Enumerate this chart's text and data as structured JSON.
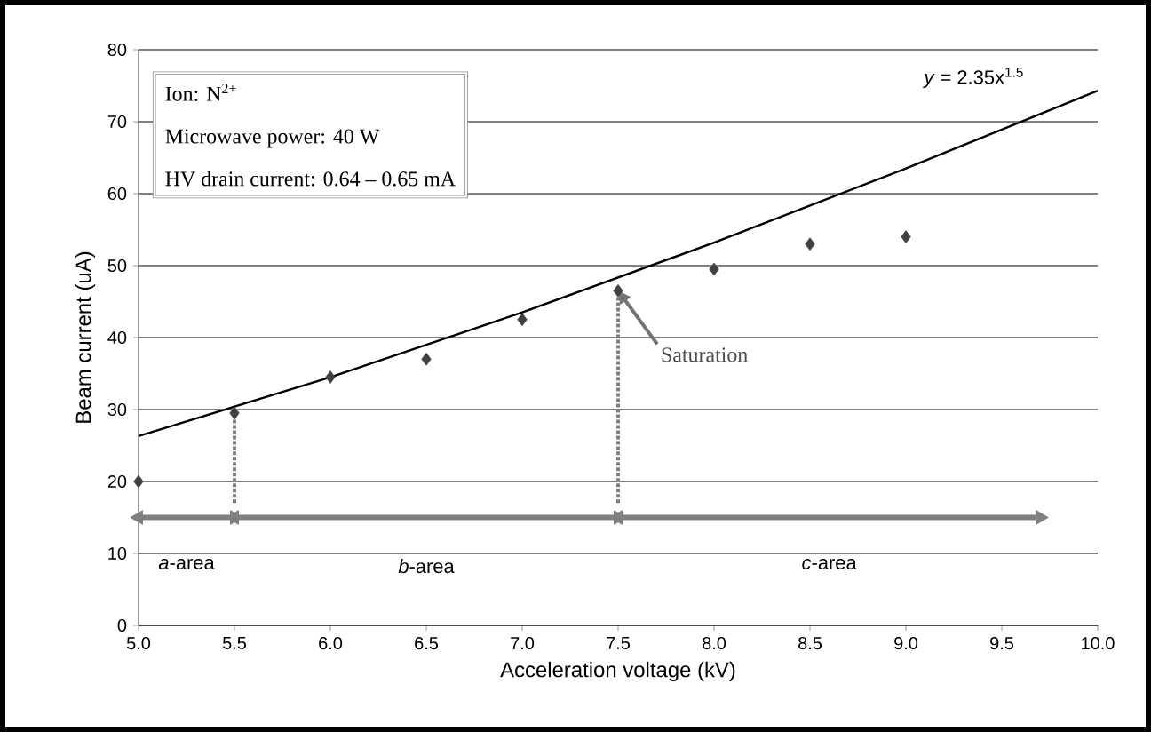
{
  "chart_data": {
    "type": "scatter",
    "xlabel": "Acceleration voltage  (kV)",
    "ylabel": "Beam current  (uA)",
    "xlim": [
      5,
      10
    ],
    "xticks": [
      {
        "value": 5,
        "label": "5.0"
      },
      {
        "value": 5.5,
        "label": "5.5"
      },
      {
        "value": 6,
        "label": "6.0"
      },
      {
        "value": 6.5,
        "label": "6.5"
      },
      {
        "value": 7,
        "label": "7.0"
      },
      {
        "value": 7.5,
        "label": "7.5"
      },
      {
        "value": 8,
        "label": "8.0"
      },
      {
        "value": 8.5,
        "label": "8.5"
      },
      {
        "value": 9,
        "label": "9.0"
      },
      {
        "value": 9.5,
        "label": "9.5"
      },
      {
        "value": 10,
        "label": "10.0"
      }
    ],
    "ylim": [
      0,
      80
    ],
    "yticks": [
      0,
      10,
      20,
      30,
      40,
      50,
      60,
      70,
      80
    ],
    "grid": "y",
    "marker": "diamond",
    "series": [
      {
        "color": "#404040",
        "x": [
          5,
          5.5,
          6,
          6.5,
          7,
          7.5,
          8,
          8.5,
          9
        ],
        "values": [
          20,
          29.5,
          34.5,
          37,
          42.5,
          46.5,
          49.5,
          53,
          54
        ]
      },
      {
        "type": "line",
        "marker": "none",
        "color": "#000000",
        "line_style": "solid",
        "x": [
          5,
          6,
          7,
          8,
          9,
          10
        ],
        "values": [
          26.3,
          34.5,
          43.5,
          53.2,
          63.5,
          74.3
        ]
      },
      {
        "type": "line",
        "marker": "none",
        "color": "#7f7f7f",
        "line_style": "dotted",
        "x": [
          5.5,
          5.5
        ],
        "values": [
          17,
          29.5
        ]
      },
      {
        "type": "line",
        "marker": "none",
        "color": "#7f7f7f",
        "line_style": "dotted",
        "x": [
          7.5,
          7.5
        ],
        "values": [
          17,
          46.5
        ]
      },
      {
        "type": "line",
        "marker": "triangle",
        "color": "#7f7f7f",
        "line_style": "solid",
        "x": [
          5,
          5.5
        ],
        "values": [
          15,
          15
        ]
      },
      {
        "type": "line",
        "marker": "triangle",
        "color": "#7f7f7f",
        "line_style": "solid",
        "x": [
          5.5,
          7.5
        ],
        "values": [
          15,
          15
        ]
      },
      {
        "type": "line",
        "marker": "triangle",
        "color": "#7f7f7f",
        "line_style": "solid",
        "x": [
          7.5,
          9.7
        ],
        "values": [
          15,
          15
        ]
      }
    ],
    "annotations": [
      "Ion: N$^{2+}$",
      "Microwave power: 40 W",
      "HV drain current: 0.64 – 0.65 mA",
      "*y* = 2.35x$^{1.5}$",
      {
        "text": "Saturation",
        "x": 7.5,
        "y": 46.5
      },
      "*a*-area",
      "*b*-area",
      "*c*-area"
    ]
  }
}
